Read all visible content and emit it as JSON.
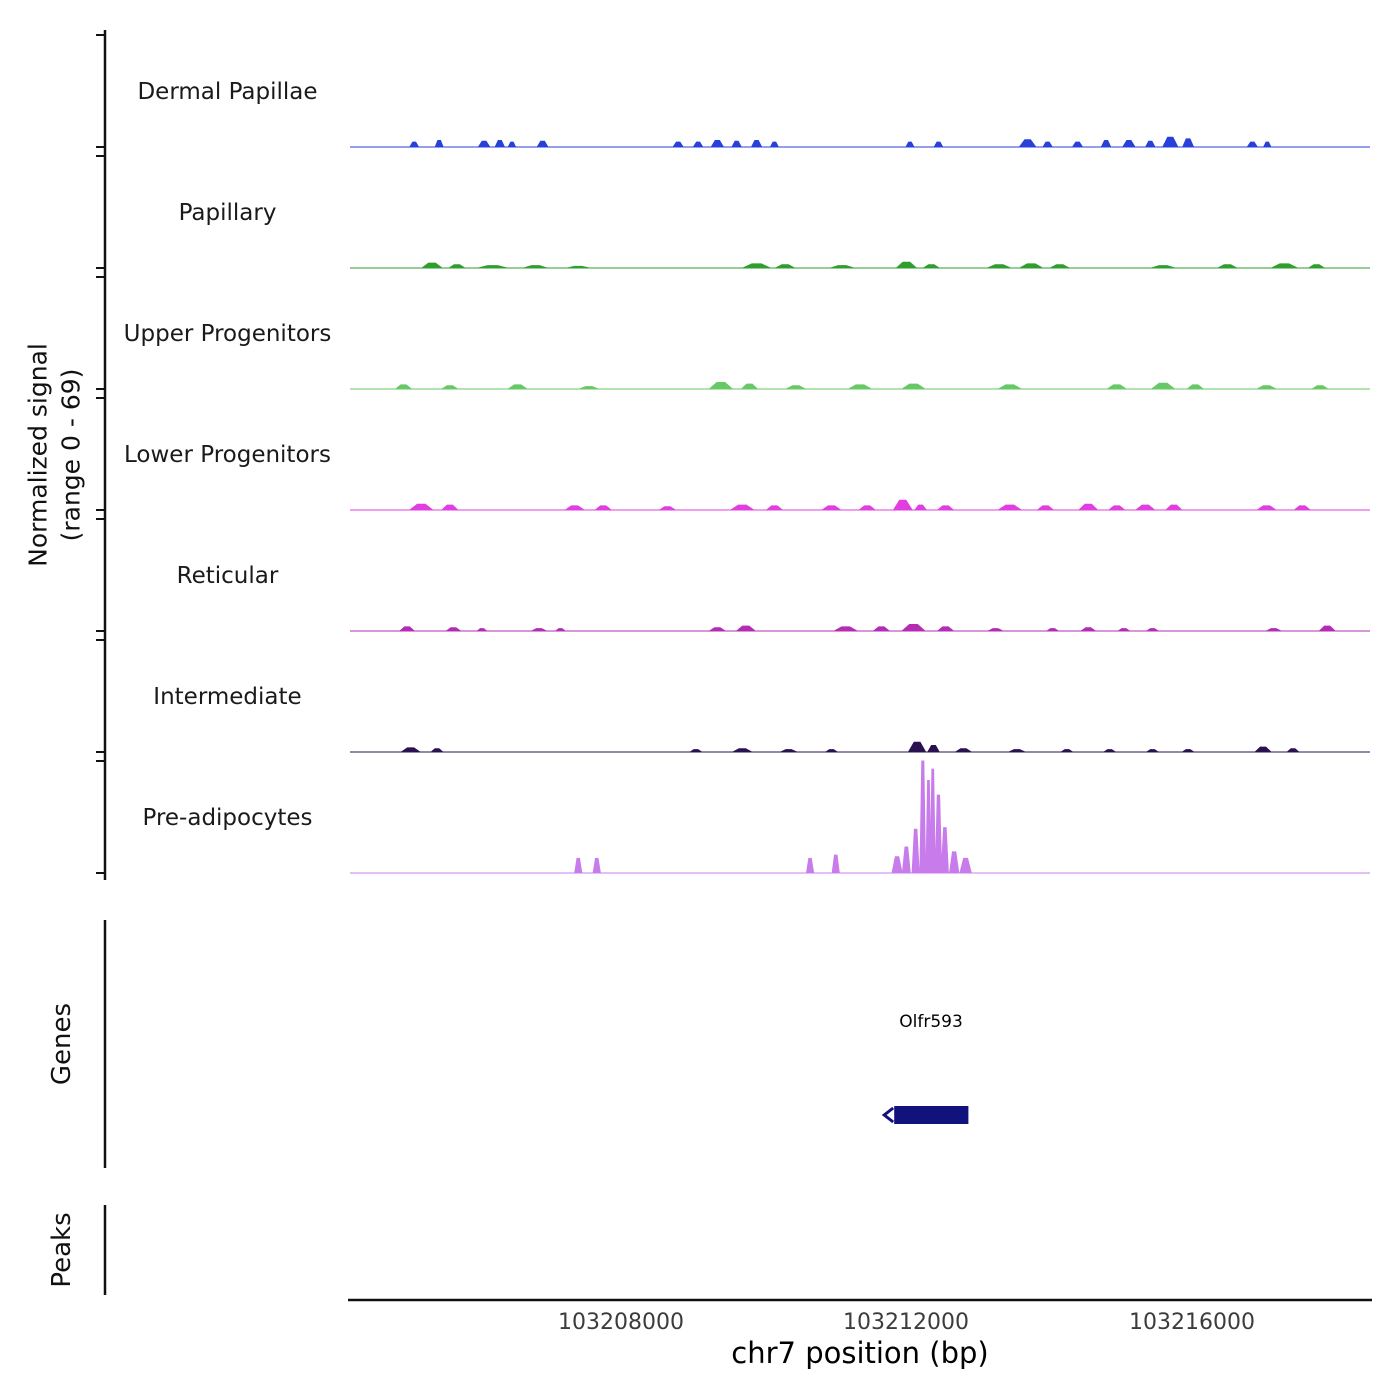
{
  "y_axis": {
    "label_line1": "Normalized signal",
    "label_line2": "(range 0 - 69)"
  },
  "sections": {
    "genes_label": "Genes",
    "peaks_label": "Peaks"
  },
  "gene": {
    "name": "Olfr593",
    "start_bp": 103211830,
    "end_bp": 103212870,
    "color": "#12127d",
    "strand_marker": "left-arrow"
  },
  "x_axis": {
    "title": "chr7 position (bp)",
    "ticks": [
      {
        "label": "103208000",
        "bp": 103208000
      },
      {
        "label": "103212000",
        "bp": 103212000
      },
      {
        "label": "103216000",
        "bp": 103216000
      }
    ]
  },
  "chart_data": {
    "type": "area",
    "title": "",
    "xlabel": "chr7 position (bp)",
    "ylabel": "Normalized signal (range 0 - 69)",
    "xlim": [
      103204200,
      103218500
    ],
    "ylim": [
      0,
      69
    ],
    "grid": false,
    "legend": "none",
    "layout": "stacked-genome-tracks",
    "tracks": [
      {
        "name": "Dermal Papillae",
        "color": "#2841d9",
        "peaks": [
          [
            103205100,
            3,
            120
          ],
          [
            103205450,
            4,
            110
          ],
          [
            103206080,
            3.5,
            160
          ],
          [
            103206300,
            4,
            130
          ],
          [
            103206470,
            3,
            100
          ],
          [
            103206900,
            3.5,
            150
          ],
          [
            103208800,
            3,
            140
          ],
          [
            103209080,
            3,
            130
          ],
          [
            103209350,
            4,
            170
          ],
          [
            103209620,
            3.5,
            130
          ],
          [
            103209900,
            4,
            140
          ],
          [
            103210150,
            3,
            110
          ],
          [
            103212050,
            3,
            110
          ],
          [
            103212450,
            3,
            120
          ],
          [
            103213700,
            4.5,
            230
          ],
          [
            103213980,
            3,
            130
          ],
          [
            103214400,
            3,
            140
          ],
          [
            103214800,
            4,
            130
          ],
          [
            103215120,
            4,
            170
          ],
          [
            103215420,
            3.5,
            130
          ],
          [
            103215700,
            6,
            210
          ],
          [
            103215950,
            5,
            150
          ],
          [
            103216850,
            3,
            140
          ],
          [
            103217060,
            3,
            100
          ]
        ]
      },
      {
        "name": "Papillary",
        "color": "#2f9e2f",
        "peaks": [
          [
            103205350,
            3,
            280
          ],
          [
            103205700,
            2,
            220
          ],
          [
            103206200,
            1.5,
            400
          ],
          [
            103206800,
            1.5,
            320
          ],
          [
            103207400,
            1,
            300
          ],
          [
            103209900,
            2.5,
            380
          ],
          [
            103210300,
            2,
            260
          ],
          [
            103211100,
            1.5,
            320
          ],
          [
            103212000,
            3.5,
            280
          ],
          [
            103212350,
            2,
            220
          ],
          [
            103213300,
            2,
            320
          ],
          [
            103213750,
            2.5,
            320
          ],
          [
            103214150,
            2,
            260
          ],
          [
            103215600,
            1.5,
            320
          ],
          [
            103216500,
            2,
            260
          ],
          [
            103217300,
            2.5,
            360
          ],
          [
            103217750,
            2,
            220
          ]
        ]
      },
      {
        "name": "Upper Progenitors",
        "color": "#66c966",
        "peaks": [
          [
            103204950,
            2.5,
            220
          ],
          [
            103205600,
            2,
            220
          ],
          [
            103206550,
            2.5,
            260
          ],
          [
            103207550,
            1.5,
            260
          ],
          [
            103209400,
            4,
            320
          ],
          [
            103209800,
            3,
            220
          ],
          [
            103210450,
            2,
            260
          ],
          [
            103211350,
            2.5,
            320
          ],
          [
            103212100,
            3,
            320
          ],
          [
            103213450,
            2.5,
            320
          ],
          [
            103214950,
            2.5,
            260
          ],
          [
            103215600,
            3.5,
            320
          ],
          [
            103216050,
            2.5,
            220
          ],
          [
            103217050,
            2,
            260
          ],
          [
            103217800,
            2,
            220
          ]
        ]
      },
      {
        "name": "Lower Progenitors",
        "color": "#e03ee0",
        "peaks": [
          [
            103205200,
            3.5,
            320
          ],
          [
            103205600,
            3,
            220
          ],
          [
            103207350,
            2.5,
            260
          ],
          [
            103207750,
            2.5,
            220
          ],
          [
            103208650,
            2,
            220
          ],
          [
            103209700,
            3,
            320
          ],
          [
            103210150,
            2.5,
            220
          ],
          [
            103210950,
            2.5,
            260
          ],
          [
            103211450,
            2.5,
            220
          ],
          [
            103211950,
            6,
            260
          ],
          [
            103212200,
            3,
            160
          ],
          [
            103212550,
            2.5,
            220
          ],
          [
            103213450,
            3,
            320
          ],
          [
            103213950,
            2.5,
            220
          ],
          [
            103214550,
            3.5,
            260
          ],
          [
            103214950,
            2.5,
            220
          ],
          [
            103215350,
            3,
            260
          ],
          [
            103215750,
            3,
            220
          ],
          [
            103217050,
            2.5,
            260
          ],
          [
            103217550,
            2.5,
            220
          ]
        ]
      },
      {
        "name": "Reticular",
        "color": "#b32cb3",
        "peaks": [
          [
            103205000,
            2.5,
            200
          ],
          [
            103205650,
            2,
            200
          ],
          [
            103206050,
            1.5,
            130
          ],
          [
            103206850,
            1.5,
            200
          ],
          [
            103207150,
            1.5,
            130
          ],
          [
            103209350,
            2,
            220
          ],
          [
            103209750,
            3,
            260
          ],
          [
            103211150,
            2.5,
            320
          ],
          [
            103211650,
            2.5,
            220
          ],
          [
            103212100,
            4,
            320
          ],
          [
            103212550,
            2.5,
            220
          ],
          [
            103213250,
            1.5,
            200
          ],
          [
            103214050,
            1.5,
            160
          ],
          [
            103214550,
            2,
            200
          ],
          [
            103215050,
            1.5,
            160
          ],
          [
            103215450,
            1.5,
            160
          ],
          [
            103217150,
            1.5,
            200
          ],
          [
            103217900,
            3,
            220
          ]
        ]
      },
      {
        "name": "Intermediate",
        "color": "#2a1250",
        "peaks": [
          [
            103205050,
            2.5,
            260
          ],
          [
            103205420,
            2,
            160
          ],
          [
            103209050,
            1.5,
            160
          ],
          [
            103209700,
            2,
            260
          ],
          [
            103210350,
            1.5,
            220
          ],
          [
            103210950,
            1.5,
            160
          ],
          [
            103212150,
            6,
            240
          ],
          [
            103212380,
            4,
            160
          ],
          [
            103212800,
            2,
            220
          ],
          [
            103213550,
            1.5,
            220
          ],
          [
            103214250,
            1.5,
            160
          ],
          [
            103214850,
            1.5,
            160
          ],
          [
            103215450,
            1.5,
            160
          ],
          [
            103215950,
            1.5,
            160
          ],
          [
            103217000,
            3,
            220
          ],
          [
            103217420,
            2,
            160
          ]
        ]
      },
      {
        "name": "Pre-adipocytes",
        "color": "#c87ceb",
        "peaks": [
          [
            103207400,
            9,
            100
          ],
          [
            103207660,
            9,
            100
          ],
          [
            103210650,
            9,
            100
          ],
          [
            103211010,
            11,
            100
          ],
          [
            103211870,
            10,
            140
          ],
          [
            103212000,
            16,
            110
          ],
          [
            103212130,
            27,
            100
          ],
          [
            103212230,
            69,
            80
          ],
          [
            103212310,
            57,
            70
          ],
          [
            103212370,
            64,
            70
          ],
          [
            103212450,
            48,
            90
          ],
          [
            103212540,
            28,
            100
          ],
          [
            103212670,
            13,
            130
          ],
          [
            103212830,
            9,
            160
          ]
        ]
      }
    ]
  }
}
